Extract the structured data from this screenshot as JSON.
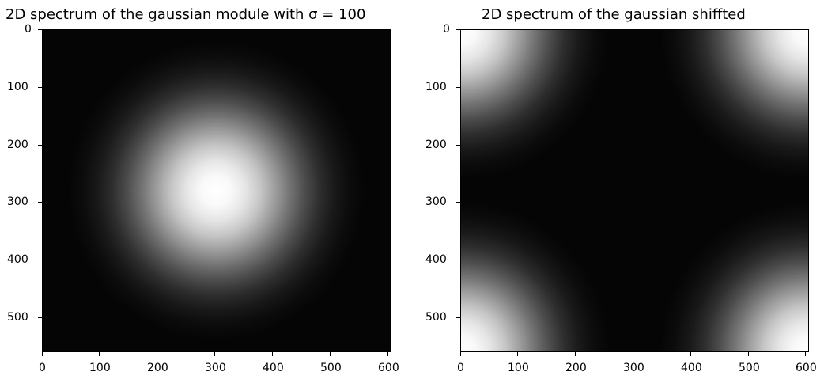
{
  "chart_data": [
    {
      "type": "heatmap",
      "title": "2D spectrum of the gaussian module with σ = 100",
      "colormap": "gray",
      "xlim": [
        0,
        609
      ],
      "ylim": [
        560,
        0
      ],
      "xticks": [
        0,
        100,
        200,
        300,
        400,
        500,
        600
      ],
      "yticks": [
        0,
        100,
        200,
        300,
        400,
        500
      ],
      "gaussian_peaks": [
        {
          "x": 304,
          "y": 280
        }
      ],
      "sigma": 100,
      "xlabel": "",
      "ylabel": ""
    },
    {
      "type": "heatmap",
      "title": "2D spectrum of the gaussian shiffted",
      "colormap": "gray",
      "xlim": [
        0,
        609
      ],
      "ylim": [
        560,
        0
      ],
      "xticks": [
        0,
        100,
        200,
        300,
        400,
        500,
        600
      ],
      "yticks": [
        0,
        100,
        200,
        300,
        400,
        500
      ],
      "gaussian_peaks": [
        {
          "x": 0,
          "y": 0
        },
        {
          "x": 609,
          "y": 0
        },
        {
          "x": 0,
          "y": 560
        },
        {
          "x": 609,
          "y": 560
        }
      ],
      "sigma": 100,
      "xlabel": "",
      "ylabel": ""
    }
  ]
}
